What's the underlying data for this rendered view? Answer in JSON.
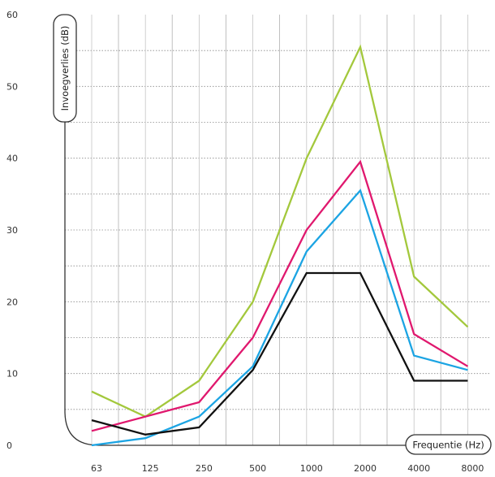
{
  "chart_data": {
    "type": "line",
    "xlabel": "Frequentie (Hz)",
    "ylabel": "Invoegverlies (dB)",
    "categories": [
      "63",
      "125",
      "250",
      "500",
      "1000",
      "2000",
      "4000",
      "8000"
    ],
    "y_ticks": [
      "0",
      "10",
      "20",
      "30",
      "40",
      "50",
      "60"
    ],
    "ylim": [
      0,
      60
    ],
    "grid": true,
    "series": [
      {
        "color": "#a3c83c",
        "values": [
          7.5,
          4,
          9,
          20,
          40,
          55.5,
          23.5,
          16.5
        ]
      },
      {
        "color": "#e0186e",
        "values": [
          2,
          4,
          6,
          15,
          30,
          39.5,
          15.5,
          11
        ]
      },
      {
        "color": "#1ba4e3",
        "values": [
          0,
          1,
          4,
          11,
          27,
          35.5,
          12.5,
          10.5
        ]
      },
      {
        "color": "#111111",
        "values": [
          3.5,
          1.5,
          2.5,
          10.5,
          24,
          24,
          9,
          9
        ]
      }
    ]
  }
}
